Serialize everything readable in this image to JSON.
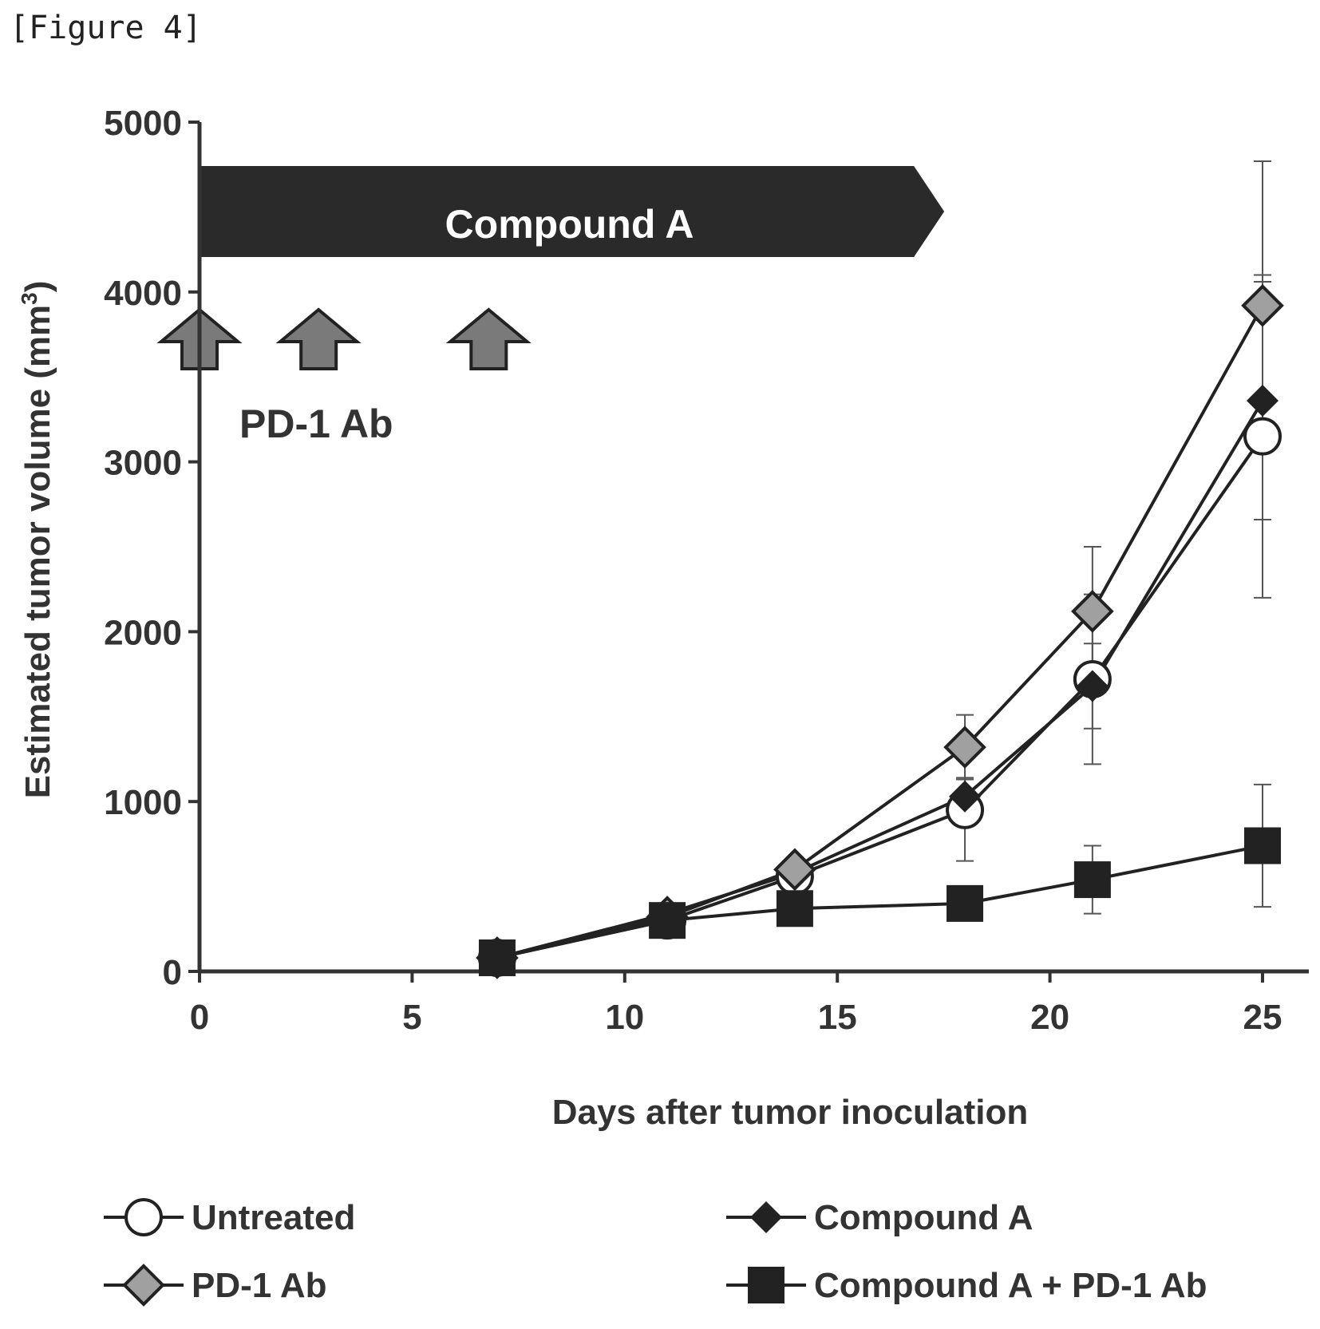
{
  "figure_label": "[Figure 4]",
  "chart_data": {
    "type": "line",
    "title": "",
    "xlabel": "Days after tumor inoculation",
    "ylabel": "Estimated tumor volume (mm",
    "ylabel_sup": "3",
    "ylabel_close": ")",
    "xlim": [
      0,
      25
    ],
    "ylim": [
      0,
      5000
    ],
    "x_ticks": [
      0,
      5,
      10,
      15,
      20,
      25
    ],
    "y_ticks": [
      0,
      1000,
      2000,
      3000,
      4000,
      5000
    ],
    "x": [
      7,
      11,
      14,
      18,
      21,
      25
    ],
    "series": [
      {
        "name": "Untreated",
        "marker": "open-circle",
        "values": [
          80,
          300,
          560,
          950,
          1720,
          3150
        ],
        "error": [
          0,
          40,
          60,
          300,
          500,
          950
        ]
      },
      {
        "name": "Compound A",
        "marker": "filled-diamond",
        "values": [
          80,
          340,
          580,
          1030,
          1680,
          3360
        ],
        "error": [
          0,
          40,
          60,
          110,
          250,
          700
        ]
      },
      {
        "name": "PD-1 Ab",
        "marker": "gray-diamond",
        "values": [
          80,
          320,
          600,
          1320,
          2120,
          3920
        ],
        "error": [
          0,
          40,
          60,
          190,
          380,
          850
        ]
      },
      {
        "name": "Compound A + PD-1 Ab",
        "marker": "filled-square",
        "values": [
          80,
          300,
          370,
          400,
          540,
          740
        ],
        "error": [
          0,
          30,
          60,
          80,
          200,
          360
        ]
      }
    ],
    "annotations": {
      "compound_bar_label": "Compound A",
      "compound_bar_end_day": 16.8,
      "pd1_label": "PD-1 Ab",
      "pd1_dose_days": [
        0,
        2.8,
        6.8
      ]
    },
    "legend_position": "bottom",
    "colors": {
      "line": "#222222",
      "gray_marker": "#a0a0a0",
      "bar": "#2a2a2a",
      "arrow": "#7a7a7a"
    }
  }
}
